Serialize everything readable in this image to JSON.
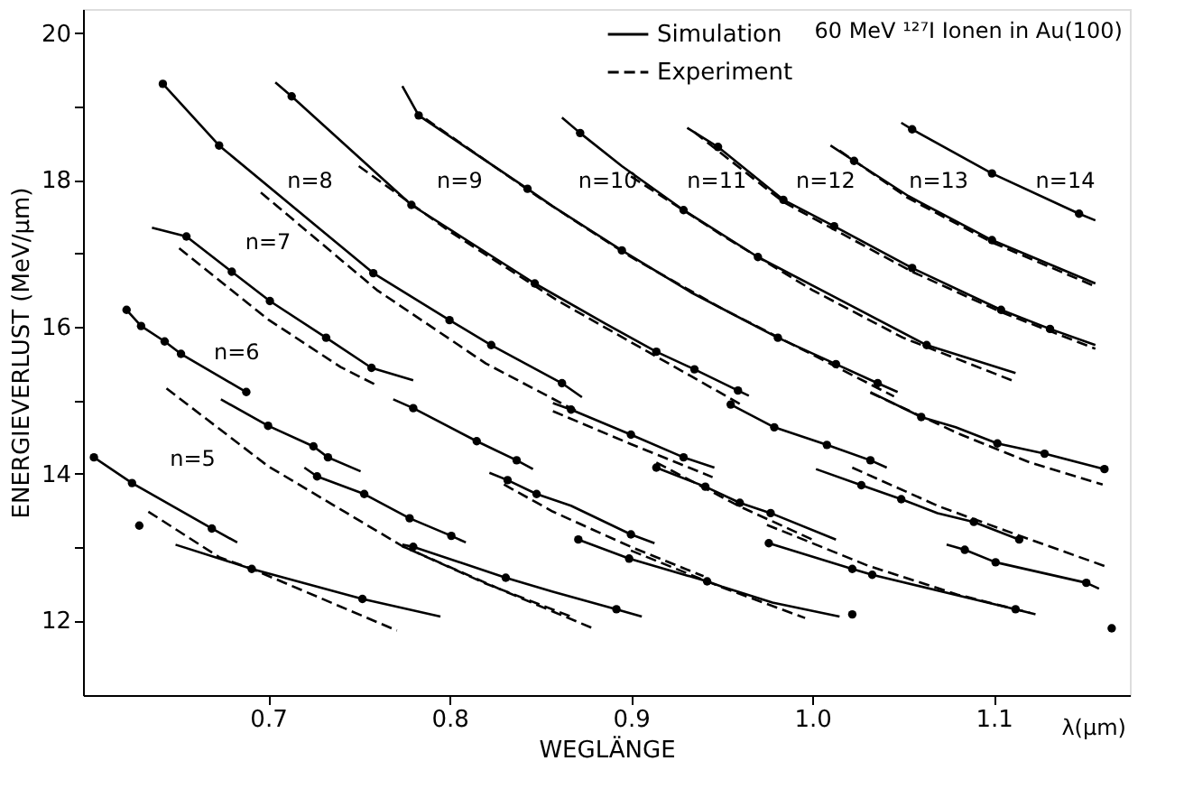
{
  "chart_data": {
    "type": "line",
    "xlabel": "WEGLÄNGE",
    "ylabel": "ENERGIEVERLUST (MeV/µm)",
    "xlim": [
      0.598,
      1.175
    ],
    "ylim": [
      10.98,
      20.33
    ],
    "xticks": [
      0.7,
      0.8,
      0.9,
      {
        "value": 1.0,
        "label": "1.0"
      },
      1.1
    ],
    "yticks": [
      12,
      {
        "value": 13,
        "label": null
      },
      14,
      {
        "value": 15,
        "label": null
      },
      16,
      {
        "value": 17,
        "label": null
      },
      18,
      {
        "value": 19,
        "label": null
      },
      20
    ],
    "grid": false,
    "legend": "top",
    "annotations": [
      "60 MeV ¹²⁷I Ionen in Au(100)",
      "λ(µm)",
      "n=5",
      "n=6",
      "n=7",
      "n=8",
      "n=9",
      "n=10",
      "n=11",
      "n=12",
      "n=13",
      "n=14"
    ],
    "series": [
      {
        "name": "Simulation",
        "color": "#000000",
        "line_style": "solid",
        "x": [
          0.642,
          0.673,
          0.758,
          0.8,
          0.823,
          0.862,
          0.873
        ],
        "values": [
          19.31,
          18.47,
          16.73,
          16.09,
          15.75,
          15.23,
          15.04
        ]
      },
      {
        "name": "Experiment",
        "color": "#000000",
        "line_style": "dashed",
        "x": [
          0.696,
          0.76,
          0.82,
          0.87
        ],
        "values": [
          17.83,
          16.5,
          15.5,
          14.85
        ]
      },
      {
        "color": "#000000",
        "line_style": "solid",
        "x": [
          0.704,
          0.713,
          0.779,
          0.847,
          0.886,
          0.914,
          0.935,
          0.959,
          0.965
        ],
        "values": [
          19.33,
          19.14,
          17.66,
          16.59,
          16.04,
          15.66,
          15.42,
          15.13,
          15.06
        ]
      },
      {
        "color": "#000000",
        "line_style": "dashed",
        "x": [
          0.75,
          0.8,
          0.86,
          0.91,
          0.96
        ],
        "values": [
          18.19,
          17.3,
          16.35,
          15.65,
          14.95
        ]
      },
      {
        "color": "#000000",
        "line_style": "solid",
        "x": [
          0.774,
          0.783,
          0.843,
          0.857,
          0.895,
          0.933,
          0.981,
          1.013,
          1.036,
          1.047
        ],
        "values": [
          19.28,
          18.88,
          17.88,
          17.64,
          17.04,
          16.47,
          15.85,
          15.49,
          15.23,
          15.11
        ]
      },
      {
        "color": "#000000",
        "line_style": "dashed",
        "x": [
          0.787,
          0.85,
          0.9,
          0.95,
          1.0,
          1.045
        ],
        "values": [
          18.83,
          17.75,
          16.95,
          16.25,
          15.62,
          15.05
        ]
      },
      {
        "color": "#000000",
        "line_style": "solid",
        "x": [
          0.862,
          0.872,
          0.895,
          0.929,
          0.97,
          1.015,
          1.063,
          1.112
        ],
        "values": [
          18.85,
          18.64,
          18.19,
          17.59,
          16.95,
          16.37,
          15.75,
          15.37
        ]
      },
      {
        "color": "#000000",
        "line_style": "dashed",
        "x": [
          0.9,
          0.95,
          1.0,
          1.05,
          1.112
        ],
        "values": [
          18.05,
          17.25,
          16.5,
          15.85,
          15.25
        ]
      },
      {
        "color": "#000000",
        "line_style": "solid",
        "x": [
          0.931,
          0.948,
          0.984,
          1.012,
          1.055,
          1.104,
          1.131,
          1.156
        ],
        "values": [
          18.71,
          18.45,
          17.73,
          17.37,
          16.8,
          16.23,
          15.97,
          15.75
        ]
      },
      {
        "color": "#000000",
        "line_style": "dashed",
        "x": [
          0.935,
          0.984,
          1.055,
          1.104,
          1.156
        ],
        "values": [
          18.65,
          17.7,
          16.75,
          16.2,
          15.7
        ]
      },
      {
        "color": "#000000",
        "line_style": "solid",
        "x": [
          1.01,
          1.023,
          1.053,
          1.099,
          1.156
        ],
        "values": [
          18.47,
          18.26,
          17.78,
          17.18,
          16.59
        ]
      },
      {
        "color": "#000000",
        "line_style": "dashed",
        "x": [
          1.015,
          1.053,
          1.099,
          1.156
        ],
        "values": [
          18.4,
          17.75,
          17.15,
          16.55
        ]
      },
      {
        "color": "#000000",
        "line_style": "solid",
        "x": [
          1.049,
          1.055,
          1.099,
          1.147,
          1.156
        ],
        "values": [
          18.78,
          18.69,
          18.09,
          17.54,
          17.45
        ]
      },
      {
        "color": "#000000",
        "line_style": "solid",
        "x": [
          0.636,
          0.655,
          0.68,
          0.701,
          0.732,
          0.757,
          0.78
        ],
        "values": [
          17.35,
          17.23,
          16.75,
          16.35,
          15.85,
          15.44,
          15.27
        ]
      },
      {
        "color": "#000000",
        "line_style": "dashed",
        "x": [
          0.651,
          0.7,
          0.74,
          0.76
        ],
        "values": [
          17.07,
          16.1,
          15.45,
          15.2
        ]
      },
      {
        "color": "#000000",
        "line_style": "solid",
        "x": [
          0.622,
          0.63,
          0.643,
          0.652,
          0.688
        ],
        "values": [
          16.23,
          16.01,
          15.8,
          15.63,
          15.11
        ]
      },
      {
        "color": "#000000",
        "line_style": "solid",
        "x": [
          0.604,
          0.625,
          0.669,
          0.683
        ],
        "values": [
          14.22,
          13.87,
          13.25,
          13.06
        ]
      },
      {
        "color": "#000000",
        "line_style": "dashed",
        "x": [
          0.634,
          0.673,
          0.691,
          0.771
        ],
        "values": [
          13.48,
          12.86,
          12.7,
          11.86
        ]
      },
      {
        "color": "#000000",
        "line_style": "solid",
        "x": [
          0.649,
          0.691,
          0.752,
          0.795
        ],
        "values": [
          13.03,
          12.7,
          12.29,
          12.05
        ]
      },
      {
        "color": "#000000",
        "line_style": "dashed",
        "x": [
          0.644,
          0.7,
          0.774,
          0.82,
          0.867
        ],
        "values": [
          15.16,
          14.1,
          13.01,
          12.5,
          12.05
        ]
      },
      {
        "color": "#000000",
        "line_style": "solid",
        "x": [
          0.674,
          0.7,
          0.725,
          0.733,
          0.751
        ],
        "values": [
          15.01,
          14.65,
          14.37,
          14.22,
          14.03
        ]
      },
      {
        "color": "#000000",
        "line_style": "solid",
        "x": [
          0.72,
          0.727,
          0.753,
          0.778,
          0.801,
          0.809
        ],
        "values": [
          14.08,
          13.96,
          13.72,
          13.39,
          13.15,
          13.06
        ]
      },
      {
        "color": "#000000",
        "line_style": "solid",
        "x": [
          0.774,
          0.78,
          0.831,
          0.857,
          0.892,
          0.906
        ],
        "values": [
          13.03,
          13.0,
          12.58,
          12.39,
          12.15,
          12.05
        ]
      },
      {
        "color": "#000000",
        "line_style": "dashed",
        "x": [
          0.774,
          0.83,
          0.879
        ],
        "values": [
          13.01,
          12.4,
          11.89
        ]
      },
      {
        "color": "#000000",
        "line_style": "solid",
        "x": [
          0.769,
          0.78,
          0.815,
          0.837,
          0.846
        ],
        "values": [
          15.01,
          14.89,
          14.44,
          14.18,
          14.06
        ]
      },
      {
        "color": "#000000",
        "line_style": "solid",
        "x": [
          0.822,
          0.832,
          0.848,
          0.867,
          0.9,
          0.913
        ],
        "values": [
          14.01,
          13.91,
          13.72,
          13.56,
          13.17,
          13.05
        ]
      },
      {
        "color": "#000000",
        "line_style": "dashed",
        "x": [
          0.83,
          0.857,
          0.9,
          0.94
        ],
        "values": [
          13.85,
          13.48,
          13.0,
          12.6
        ]
      },
      {
        "color": "#000000",
        "line_style": "solid",
        "x": [
          0.871,
          0.899,
          0.942,
          0.95,
          0.978,
          1.015
        ],
        "values": [
          13.1,
          12.84,
          12.53,
          12.46,
          12.24,
          12.05
        ]
      },
      {
        "color": "#000000",
        "line_style": "dashed",
        "x": [
          0.9,
          0.95,
          0.996
        ],
        "values": [
          12.95,
          12.45,
          12.03
        ]
      },
      {
        "color": "#000000",
        "line_style": "solid",
        "x": [
          0.976,
          1.022,
          1.033,
          1.112,
          1.123
        ],
        "values": [
          13.05,
          12.7,
          12.62,
          12.15,
          12.08
        ]
      },
      {
        "color": "#000000",
        "line_style": "dashed",
        "x": [
          0.975,
          1.03,
          1.08,
          1.12
        ],
        "values": [
          13.3,
          12.75,
          12.35,
          12.1
        ]
      },
      {
        "color": "#000000",
        "line_style": "solid",
        "x": [
          1.074,
          1.084,
          1.101,
          1.151,
          1.158
        ],
        "values": [
          13.03,
          12.96,
          12.79,
          12.51,
          12.43
        ]
      },
      {
        "color": "#000000",
        "line_style": "solid",
        "x": [
          1.002,
          1.027,
          1.049,
          1.069,
          1.089,
          1.114
        ],
        "values": [
          14.06,
          13.84,
          13.65,
          13.46,
          13.34,
          13.1
        ]
      },
      {
        "color": "#000000",
        "line_style": "dashed",
        "x": [
          1.022,
          1.07,
          1.12,
          1.161
        ],
        "values": [
          14.08,
          13.55,
          13.1,
          12.74
        ]
      },
      {
        "color": "#000000",
        "line_style": "solid",
        "x": [
          0.914,
          0.941,
          0.96,
          0.977,
          1.013
        ],
        "values": [
          14.08,
          13.82,
          13.6,
          13.46,
          13.1
        ]
      },
      {
        "color": "#000000",
        "line_style": "dashed",
        "x": [
          0.914,
          0.96,
          1.0
        ],
        "values": [
          14.15,
          13.55,
          13.1
        ]
      },
      {
        "color": "#000000",
        "line_style": "solid",
        "x": [
          0.857,
          0.867,
          0.9,
          0.929,
          0.946
        ],
        "values": [
          14.96,
          14.87,
          14.53,
          14.22,
          14.08
        ]
      },
      {
        "color": "#000000",
        "line_style": "dashed",
        "x": [
          0.857,
          0.9,
          0.945
        ],
        "values": [
          14.85,
          14.4,
          13.95
        ]
      },
      {
        "color": "#000000",
        "line_style": "solid",
        "x": [
          0.955,
          0.979,
          1.008,
          1.032,
          1.041
        ],
        "values": [
          14.94,
          14.63,
          14.39,
          14.18,
          14.08
        ]
      },
      {
        "color": "#000000",
        "line_style": "solid",
        "x": [
          1.032,
          1.06,
          1.079,
          1.102,
          1.128,
          1.161
        ],
        "values": [
          15.11,
          14.77,
          14.63,
          14.41,
          14.27,
          14.06
        ]
      },
      {
        "color": "#000000",
        "line_style": "dashed",
        "x": [
          1.032,
          1.08,
          1.12,
          1.16
        ],
        "values": [
          15.1,
          14.55,
          14.15,
          13.85
        ]
      },
      {
        "type": "scatter",
        "color": "#000000",
        "marker": "circle",
        "x": [
          0.642,
          0.673,
          0.758,
          0.8,
          0.823,
          0.862,
          0.713,
          0.779,
          0.847,
          0.914,
          0.935,
          0.959,
          0.783,
          0.843,
          0.895,
          0.981,
          1.013,
          1.036,
          0.872,
          0.929,
          0.97,
          1.063,
          0.948,
          0.984,
          1.012,
          1.055,
          1.104,
          1.131,
          1.023,
          1.099,
          1.055,
          1.099,
          1.147,
          0.655,
          0.68,
          0.701,
          0.732,
          0.757,
          0.622,
          0.63,
          0.643,
          0.652,
          0.688,
          0.604,
          0.625,
          0.669,
          0.629,
          0.691,
          0.752,
          0.7,
          0.725,
          0.733,
          0.727,
          0.753,
          0.778,
          0.801,
          0.78,
          0.831,
          0.892,
          0.78,
          0.815,
          0.837,
          0.832,
          0.848,
          0.9,
          0.871,
          0.899,
          0.942,
          1.022,
          0.976,
          1.022,
          1.033,
          1.112,
          1.084,
          1.101,
          1.151,
          1.165,
          1.027,
          1.049,
          1.089,
          1.114,
          0.914,
          0.941,
          0.96,
          0.977,
          0.867,
          0.9,
          0.929,
          0.955,
          0.979,
          1.008,
          1.032,
          1.06,
          1.102,
          1.128,
          1.161
        ],
        "values": [
          19.31,
          18.47,
          16.73,
          16.09,
          15.75,
          15.23,
          19.14,
          17.66,
          16.59,
          15.66,
          15.42,
          15.13,
          18.88,
          17.88,
          17.04,
          15.85,
          15.49,
          15.23,
          18.64,
          17.59,
          16.95,
          15.75,
          18.45,
          17.73,
          17.37,
          16.8,
          16.23,
          15.97,
          18.26,
          17.18,
          18.69,
          18.09,
          17.54,
          17.23,
          16.75,
          16.35,
          15.85,
          15.44,
          16.23,
          16.01,
          15.8,
          15.63,
          15.11,
          14.22,
          13.87,
          13.25,
          13.29,
          12.7,
          12.29,
          14.65,
          14.37,
          14.22,
          13.96,
          13.72,
          13.39,
          13.15,
          13.0,
          12.58,
          12.15,
          14.89,
          14.44,
          14.18,
          13.91,
          13.72,
          13.17,
          13.1,
          12.84,
          12.53,
          12.08,
          13.05,
          12.7,
          12.62,
          12.15,
          12.96,
          12.79,
          12.51,
          11.89,
          13.84,
          13.65,
          13.34,
          13.1,
          14.08,
          13.82,
          13.6,
          13.46,
          14.87,
          14.53,
          14.22,
          14.94,
          14.63,
          14.39,
          14.18,
          14.77,
          14.41,
          14.27,
          14.06
        ]
      }
    ]
  }
}
